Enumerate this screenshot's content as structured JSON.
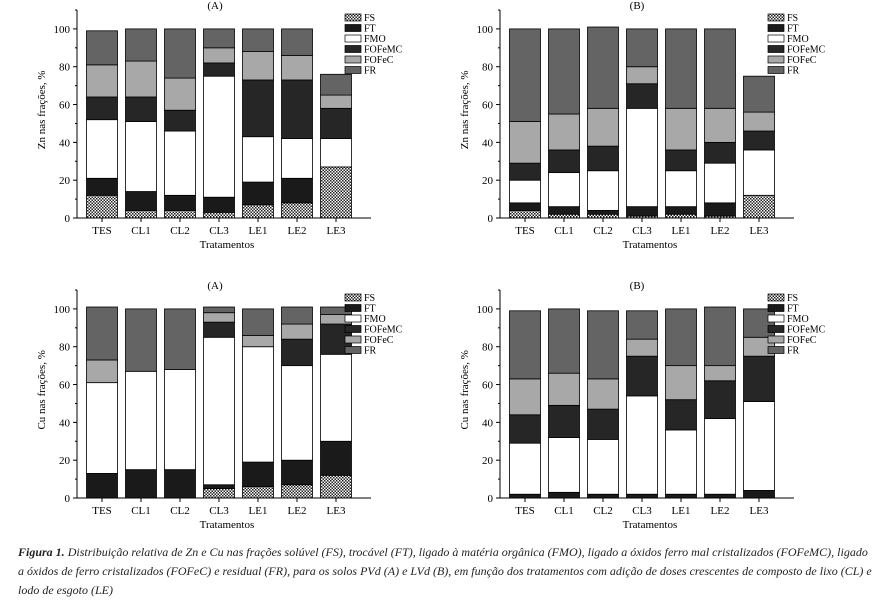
{
  "chart_data": [
    {
      "type": "bar",
      "stacked": true,
      "panel": "top-left",
      "title": "(A)",
      "xlabel": "Tratamentos",
      "ylabel": "Zn nas frações, %",
      "categories": [
        "TES",
        "CL1",
        "CL2",
        "CL3",
        "LE1",
        "LE2",
        "LE3"
      ],
      "ylim": [
        0,
        110
      ],
      "yticks": [
        0,
        20,
        40,
        60,
        80,
        100
      ],
      "legend": [
        "FS",
        "FT",
        "FMO",
        "FOFeMC",
        "FOFeC",
        "FR"
      ],
      "series": [
        {
          "name": "FS",
          "values": [
            12,
            4,
            4,
            3,
            7,
            8,
            27
          ]
        },
        {
          "name": "FT",
          "values": [
            9,
            10,
            8,
            8,
            12,
            13,
            0
          ]
        },
        {
          "name": "FMO",
          "values": [
            31,
            37,
            34,
            64,
            24,
            21,
            15
          ]
        },
        {
          "name": "FOFeMC",
          "values": [
            12,
            13,
            11,
            7,
            30,
            31,
            16
          ]
        },
        {
          "name": "FOFeC",
          "values": [
            17,
            19,
            17,
            8,
            15,
            13,
            7
          ]
        },
        {
          "name": "FR",
          "values": [
            18,
            17,
            26,
            10,
            12,
            14,
            11
          ]
        }
      ]
    },
    {
      "type": "bar",
      "stacked": true,
      "panel": "top-right",
      "title": "(B)",
      "xlabel": "Tratamentos",
      "ylabel": "Zn nas frações, %",
      "categories": [
        "TES",
        "CL1",
        "CL2",
        "CL3",
        "LE1",
        "LE2",
        "LE3"
      ],
      "ylim": [
        0,
        110
      ],
      "yticks": [
        0,
        20,
        40,
        60,
        80,
        100
      ],
      "legend": [
        "FS",
        "FT",
        "FMO",
        "FOFeMC",
        "FOFeC",
        "FR"
      ],
      "series": [
        {
          "name": "FS",
          "values": [
            4,
            2,
            2,
            1,
            2,
            1,
            12
          ]
        },
        {
          "name": "FT",
          "values": [
            4,
            4,
            2,
            5,
            4,
            7,
            0
          ]
        },
        {
          "name": "FMO",
          "values": [
            12,
            18,
            21,
            52,
            19,
            21,
            24
          ]
        },
        {
          "name": "FOFeMC",
          "values": [
            9,
            12,
            13,
            13,
            11,
            11,
            10
          ]
        },
        {
          "name": "FOFeC",
          "values": [
            22,
            19,
            20,
            9,
            22,
            18,
            10
          ]
        },
        {
          "name": "FR",
          "values": [
            49,
            45,
            43,
            20,
            42,
            42,
            19
          ]
        }
      ]
    },
    {
      "type": "bar",
      "stacked": true,
      "panel": "bottom-left",
      "title": "(A)",
      "xlabel": "Tratamentos",
      "ylabel": "Cu nas frações, %",
      "categories": [
        "TES",
        "CL1",
        "CL2",
        "CL3",
        "LE1",
        "LE2",
        "LE3"
      ],
      "ylim": [
        0,
        110
      ],
      "yticks": [
        0,
        20,
        40,
        60,
        80,
        100
      ],
      "legend": [
        "FS",
        "FT",
        "FMO",
        "FOFeMC",
        "FOFeC",
        "FR"
      ],
      "series": [
        {
          "name": "FS",
          "values": [
            0,
            0,
            0,
            5,
            6,
            7,
            12
          ]
        },
        {
          "name": "FT",
          "values": [
            13,
            15,
            15,
            2,
            13,
            13,
            18
          ]
        },
        {
          "name": "FMO",
          "values": [
            48,
            52,
            53,
            78,
            61,
            50,
            46
          ]
        },
        {
          "name": "FOFeMC",
          "values": [
            0,
            0,
            0,
            8,
            0,
            14,
            16
          ]
        },
        {
          "name": "FOFeC",
          "values": [
            12,
            0,
            0,
            5,
            6,
            8,
            5
          ]
        },
        {
          "name": "FR",
          "values": [
            28,
            33,
            32,
            3,
            14,
            9,
            4
          ]
        }
      ]
    },
    {
      "type": "bar",
      "stacked": true,
      "panel": "bottom-right",
      "title": "(B)",
      "xlabel": "Tratamentos",
      "ylabel": "Cu nas frações, %",
      "categories": [
        "TES",
        "CL1",
        "CL2",
        "CL3",
        "LE1",
        "LE2",
        "LE3"
      ],
      "ylim": [
        0,
        110
      ],
      "yticks": [
        0,
        20,
        40,
        60,
        80,
        100
      ],
      "legend": [
        "FS",
        "FT",
        "FMO",
        "FOFeMC",
        "FOFeC",
        "FR"
      ],
      "series": [
        {
          "name": "FS",
          "values": [
            0,
            0,
            0,
            0,
            0,
            0,
            0
          ]
        },
        {
          "name": "FT",
          "values": [
            2,
            3,
            2,
            2,
            2,
            2,
            4
          ]
        },
        {
          "name": "FMO",
          "values": [
            27,
            29,
            29,
            52,
            34,
            40,
            47
          ]
        },
        {
          "name": "FOFeMC",
          "values": [
            15,
            17,
            16,
            21,
            16,
            20,
            24
          ]
        },
        {
          "name": "FOFeC",
          "values": [
            19,
            17,
            16,
            9,
            18,
            8,
            10
          ]
        },
        {
          "name": "FR",
          "values": [
            36,
            34,
            36,
            15,
            30,
            31,
            15
          ]
        }
      ]
    }
  ],
  "caption": {
    "label": "Figura 1.",
    "text": "Distribuição relativa de Zn e Cu nas frações solúvel (FS), trocável (FT), ligado à matéria orgânica (FMO), ligado a óxidos ferro mal cristalizados (FOFeMC), ligado a óxidos de ferro cristalizados (FOFeC) e residual (FR), para os solos PVd (A) e LVd (B), em função dos tratamentos com adição de doses crescentes de composto de lixo (CL) e lodo de esgoto (LE)"
  },
  "colors": {
    "FS": "#d9d9d9",
    "FT": "#1a1a1a",
    "FMO": "#ffffff",
    "FOFeMC": "#262626",
    "FOFeC": "#a8a8a8",
    "FR": "#646464"
  }
}
